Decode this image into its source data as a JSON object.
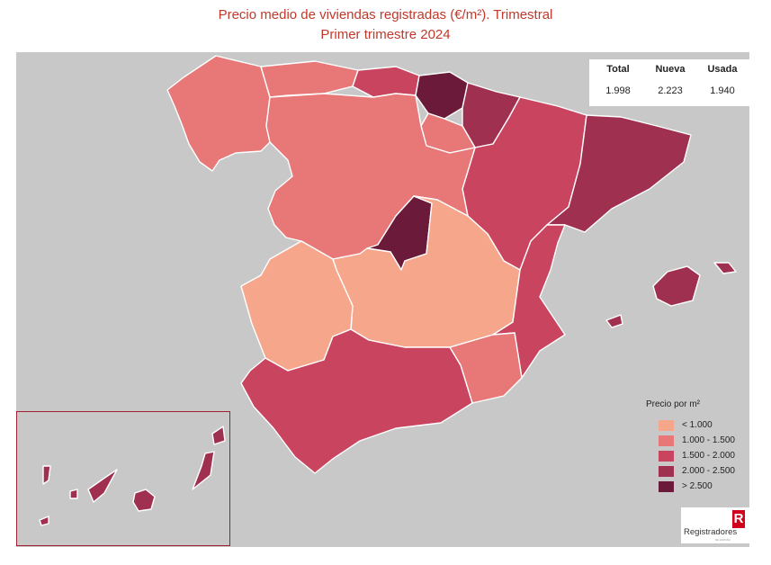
{
  "title": "Precio medio de viviendas registradas (€/m²). Trimestral",
  "subtitle": "Primer trimestre 2024",
  "summary": {
    "headers": [
      "Total",
      "Nueva",
      "Usada"
    ],
    "values": [
      "1.998",
      "2.223",
      "1.940"
    ]
  },
  "legend": {
    "title": "Precio por m²",
    "items": [
      {
        "label": "< 1.000",
        "color": "#f6a68b"
      },
      {
        "label": "1.000 - 1.500",
        "color": "#e87777"
      },
      {
        "label": "1.500 - 2.000",
        "color": "#c9455f"
      },
      {
        "label": "2.000 - 2.500",
        "color": "#a0304f"
      },
      {
        "label": "> 2.500",
        "color": "#6b1a3a"
      }
    ]
  },
  "logo": {
    "text": "Registradores",
    "sub": "DE ESPAÑA",
    "mark": "R"
  },
  "colors": {
    "background": "#c8c8c8",
    "title": "#c0392b"
  }
}
